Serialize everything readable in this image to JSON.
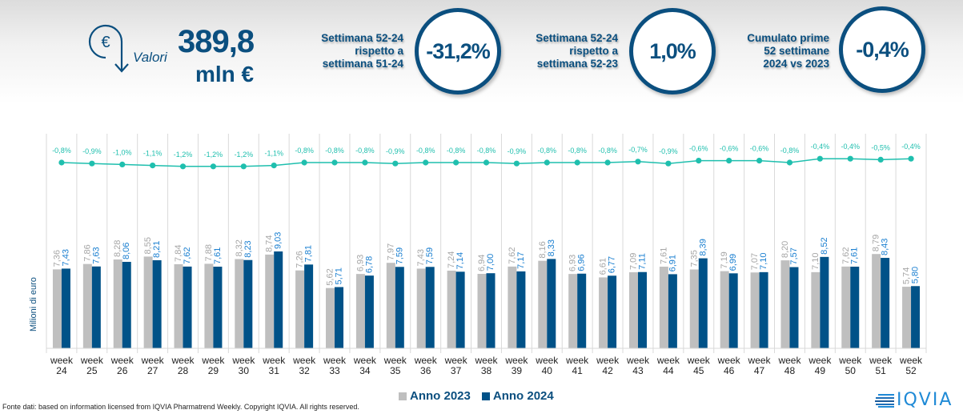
{
  "header": {
    "icon": "euro-down-arrow-icon",
    "valori_label": "Valori",
    "total_value": "389,8",
    "total_unit": "mln €",
    "kpis": [
      {
        "label_lines": [
          "Settimana 52-24",
          "rispetto a",
          "settimana 51-24"
        ],
        "value": "-31,2%"
      },
      {
        "label_lines": [
          "Settimana 52-24",
          "rispetto a",
          "settimana 52-23"
        ],
        "value": "1,0%"
      },
      {
        "label_lines": [
          "Cumulato prime",
          "52 settimane",
          "2024 vs 2023"
        ],
        "value": "-0,4%"
      }
    ]
  },
  "colors": {
    "brand": "#0b4f7f",
    "series_2023": "#bfbfbf",
    "series_2024": "#005288",
    "label_2023": "#a6a6a6",
    "label_2024": "#1a7fd0",
    "line": "#1fbfae"
  },
  "chart_data": [
    {
      "type": "line",
      "title": "",
      "categories": [
        "week 24",
        "week 25",
        "week 26",
        "week 27",
        "week 28",
        "week 29",
        "week 30",
        "week 31",
        "week 32",
        "week 33",
        "week 34",
        "week 35",
        "week 36",
        "week 37",
        "week 38",
        "week 39",
        "week 40",
        "week 41",
        "week 42",
        "week 43",
        "week 44",
        "week 45",
        "week 46",
        "week 47",
        "week 48",
        "week 49",
        "week 50",
        "week 51",
        "week 52"
      ],
      "values": [
        -0.8,
        -0.9,
        -1.0,
        -1.1,
        -1.2,
        -1.2,
        -1.2,
        -1.1,
        -0.8,
        -0.8,
        -0.8,
        -0.9,
        -0.8,
        -0.8,
        -0.8,
        -0.9,
        -0.8,
        -0.8,
        -0.8,
        -0.7,
        -0.9,
        -0.6,
        -0.6,
        -0.6,
        -0.8,
        -0.4,
        -0.4,
        -0.5,
        -0.4
      ],
      "data_labels": [
        "-0,8%",
        "-0,9%",
        "-1,0%",
        "-1,1%",
        "-1,2%",
        "-1,2%",
        "-1,2%",
        "-1,1%",
        "-0,8%",
        "-0,8%",
        "-0,8%",
        "-0,9%",
        "-0,8%",
        "-0,8%",
        "-0,8%",
        "-0,9%",
        "-0,8%",
        "-0,8%",
        "-0,8%",
        "-0,7%",
        "-0,9%",
        "-0,6%",
        "-0,6%",
        "-0,6%",
        "-0,8%",
        "-0,4%",
        "-0,4%",
        "-0,5%",
        "-0,4%"
      ],
      "unit": "%",
      "grid": "vertical"
    },
    {
      "type": "bar",
      "title": "",
      "xlabel": "",
      "ylabel": "Milioni di euro",
      "ylim": [
        0,
        12
      ],
      "categories": [
        [
          "week",
          "24"
        ],
        [
          "week",
          "25"
        ],
        [
          "week",
          "26"
        ],
        [
          "week",
          "27"
        ],
        [
          "week",
          "28"
        ],
        [
          "week",
          "29"
        ],
        [
          "week",
          "30"
        ],
        [
          "week",
          "31"
        ],
        [
          "week",
          "32"
        ],
        [
          "week",
          "33"
        ],
        [
          "week",
          "34"
        ],
        [
          "week",
          "35"
        ],
        [
          "week",
          "36"
        ],
        [
          "week",
          "37"
        ],
        [
          "week",
          "38"
        ],
        [
          "week",
          "39"
        ],
        [
          "week",
          "40"
        ],
        [
          "week",
          "41"
        ],
        [
          "week",
          "42"
        ],
        [
          "week",
          "43"
        ],
        [
          "week",
          "44"
        ],
        [
          "week",
          "45"
        ],
        [
          "week",
          "46"
        ],
        [
          "week",
          "47"
        ],
        [
          "week",
          "48"
        ],
        [
          "week",
          "49"
        ],
        [
          "week",
          "50"
        ],
        [
          "week",
          "51"
        ],
        [
          "week",
          "52"
        ]
      ],
      "series": [
        {
          "name": "Anno 2023",
          "values": [
            7.36,
            7.86,
            8.28,
            8.55,
            7.84,
            7.88,
            8.32,
            8.74,
            7.26,
            5.62,
            6.93,
            7.97,
            7.43,
            7.24,
            6.94,
            7.62,
            8.16,
            6.93,
            6.61,
            7.09,
            7.61,
            7.35,
            7.19,
            7.07,
            8.2,
            7.1,
            7.62,
            8.79,
            5.74
          ],
          "labels": [
            "7,36",
            "7,86",
            "8,28",
            "8,55",
            "7,84",
            "7,88",
            "8,32",
            "8,74",
            "7,26",
            "5,62",
            "6,93",
            "7,97",
            "7,43",
            "7,24",
            "6,94",
            "7,62",
            "8,16",
            "6,93",
            "6,61",
            "7,09",
            "7,61",
            "7,35",
            "7,19",
            "7,07",
            "8,20",
            "7,10",
            "7,62",
            "8,79",
            "5,74"
          ]
        },
        {
          "name": "Anno 2024",
          "values": [
            7.43,
            7.63,
            8.06,
            8.21,
            7.62,
            7.61,
            8.23,
            9.03,
            7.81,
            5.71,
            6.78,
            7.59,
            7.59,
            7.14,
            7.0,
            7.17,
            8.33,
            6.96,
            6.77,
            7.11,
            6.91,
            8.39,
            6.99,
            7.1,
            7.57,
            8.52,
            7.61,
            8.43,
            5.8
          ],
          "labels": [
            "7,43",
            "7,63",
            "8,06",
            "8,21",
            "7,62",
            "7,61",
            "8,23",
            "9,03",
            "7,81",
            "5,71",
            "6,78",
            "7,59",
            "7,59",
            "7,14",
            "7,00",
            "7,17",
            "8,33",
            "6,96",
            "6,77",
            "7,11",
            "6,91",
            "8,39",
            "6,99",
            "7,10",
            "7,57",
            "8,52",
            "7,61",
            "8,43",
            "5,80"
          ]
        }
      ],
      "legend": "bottom-center",
      "grid": "vertical"
    }
  ],
  "legend": [
    {
      "label": "Anno 2023"
    },
    {
      "label": "Anno 2024"
    }
  ],
  "footer": {
    "source_note": "Fonte dati: based on information licensed from IQVIA Pharmatrend Weekly. Copyright IQVIA. All rights reserved.",
    "logo_text": "IQVIA"
  }
}
